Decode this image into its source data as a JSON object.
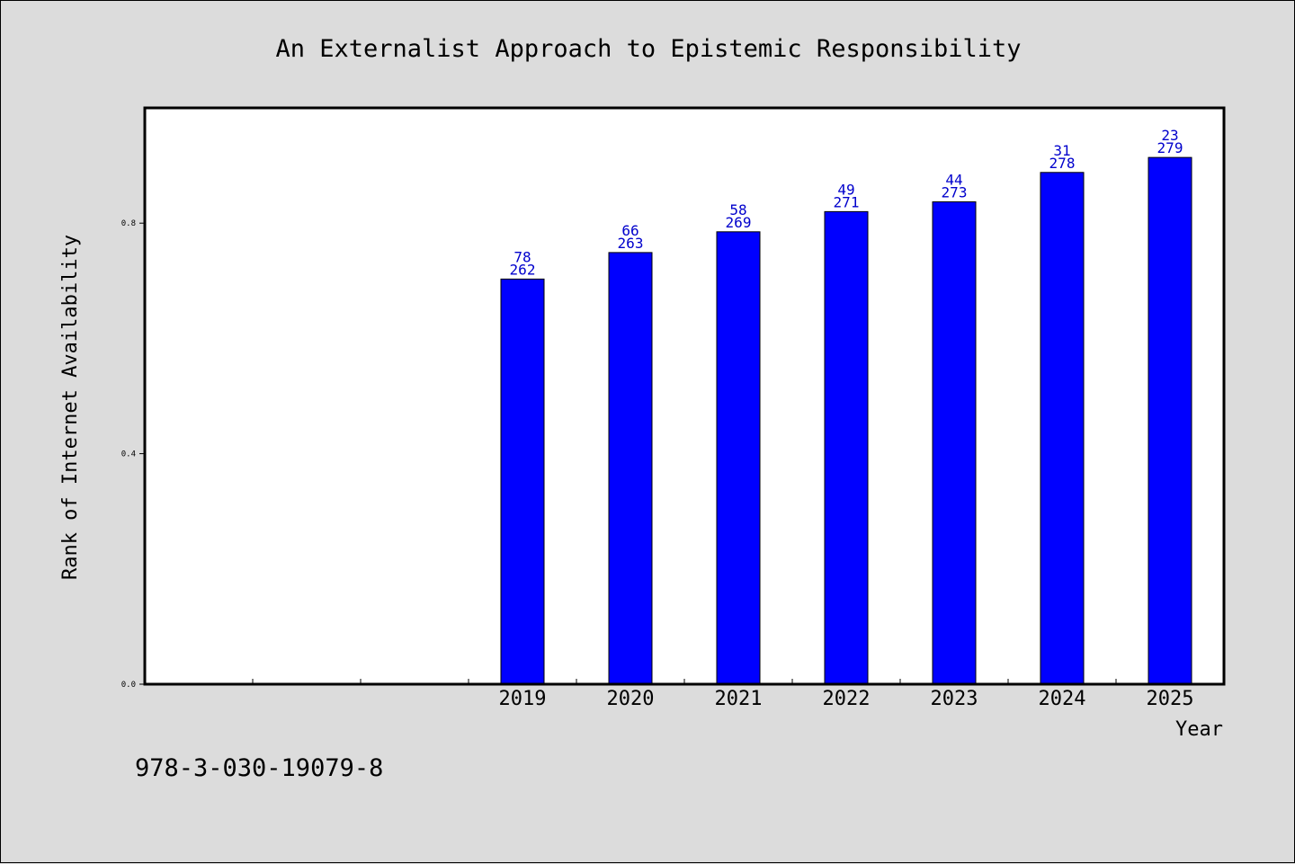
{
  "chart_data": {
    "type": "bar",
    "title": "An Externalist Approach to Epistemic Responsibility",
    "xlabel": "Year",
    "ylabel": "Rank of Internet Availability",
    "categories": [
      "",
      "",
      "",
      "2019",
      "2020",
      "2021",
      "2022",
      "2023",
      "2024",
      "2025"
    ],
    "values": [
      null,
      null,
      null,
      0.703,
      0.749,
      0.785,
      0.82,
      0.837,
      0.888,
      0.914
    ],
    "labels_top": [
      "",
      "",
      "",
      "78",
      "66",
      "58",
      "49",
      "44",
      "31",
      "23"
    ],
    "labels_bottom": [
      "",
      "",
      "",
      "262",
      "263",
      "269",
      "271",
      "273",
      "278",
      "279"
    ],
    "ylim": [
      0,
      1.0
    ],
    "yticks": [
      0.0,
      0.4,
      0.8
    ],
    "ytick_labels": [
      "0.0",
      "0.4",
      "0.8"
    ],
    "grid": false,
    "bar_color": "#0000ff",
    "label_color": "#0000cc"
  },
  "footer": {
    "isbn": "978-3-030-19079-8"
  }
}
